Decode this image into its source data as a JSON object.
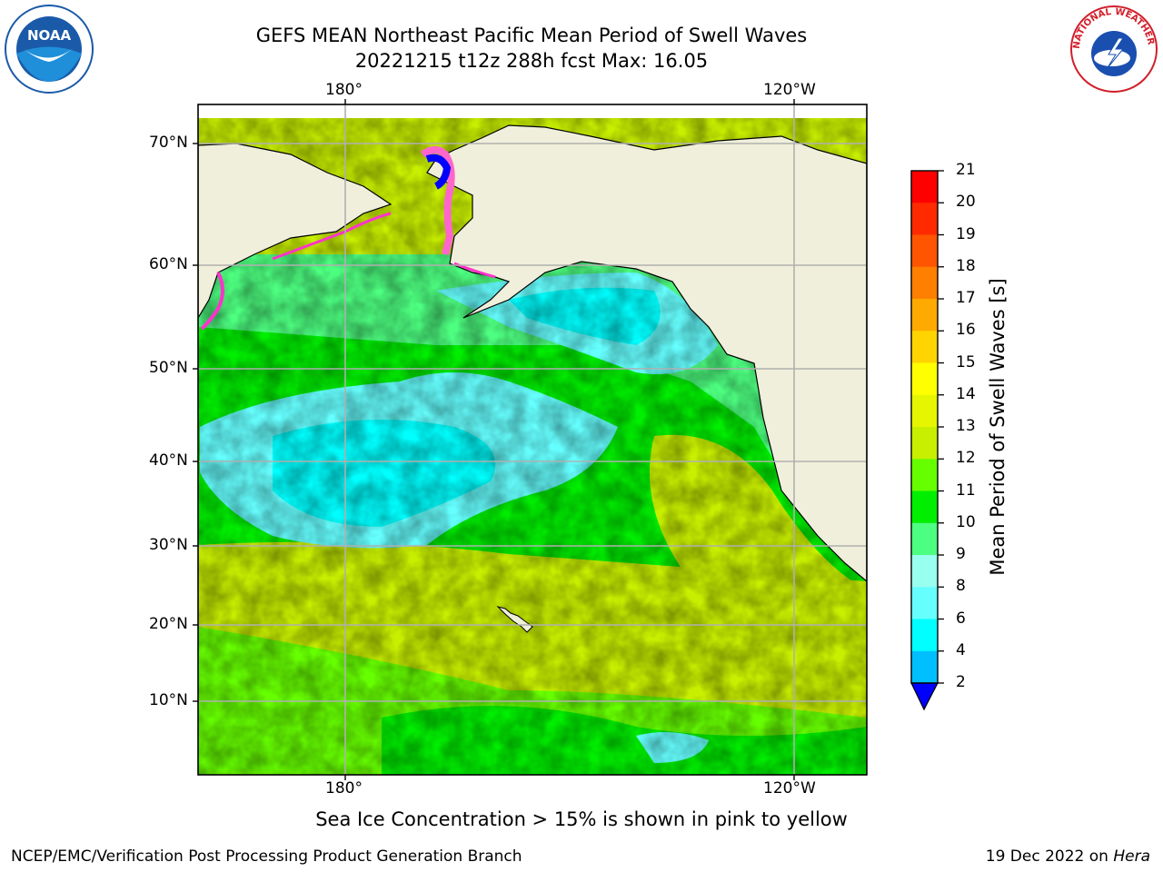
{
  "title": {
    "line1": "GEFS MEAN Northeast Pacific Mean Period of Swell Waves",
    "line2": "20221215 t12z 288h fcst   Max: 16.05"
  },
  "axes": {
    "top_lon": [
      "180°",
      "120°W"
    ],
    "bottom_lon": [
      "180°",
      "120°W"
    ],
    "lat": [
      "70°N",
      "60°N",
      "50°N",
      "40°N",
      "30°N",
      "20°N",
      "10°N"
    ]
  },
  "colorbar": {
    "label": "Mean Period of Swell Waves [s]",
    "ticks": [
      "21",
      "20",
      "19",
      "18",
      "17",
      "16",
      "15",
      "14",
      "13",
      "12",
      "11",
      "10",
      "9",
      "8",
      "6",
      "4",
      "2"
    ],
    "colors": [
      "#ff0000",
      "#ff2a00",
      "#ff5500",
      "#ff7f00",
      "#ffaa00",
      "#ffd400",
      "#ffff00",
      "#e6f500",
      "#c8ef00",
      "#66ff00",
      "#00ee00",
      "#4dff80",
      "#99ffee",
      "#66ffff",
      "#00ffff",
      "#00bfff",
      "#0066ff",
      "#0000ff"
    ]
  },
  "caption": "Sea Ice Concentration > 15% is shown in pink to yellow",
  "footer": {
    "left": "NCEP/EMC/Verification Post Processing Product Generation Branch",
    "right_date": "19 Dec 2022 on ",
    "right_host": "Hera"
  },
  "logos": {
    "noaa_text": "NOAA",
    "nws_text": "NATIONAL WEATHER SERVICE"
  }
}
